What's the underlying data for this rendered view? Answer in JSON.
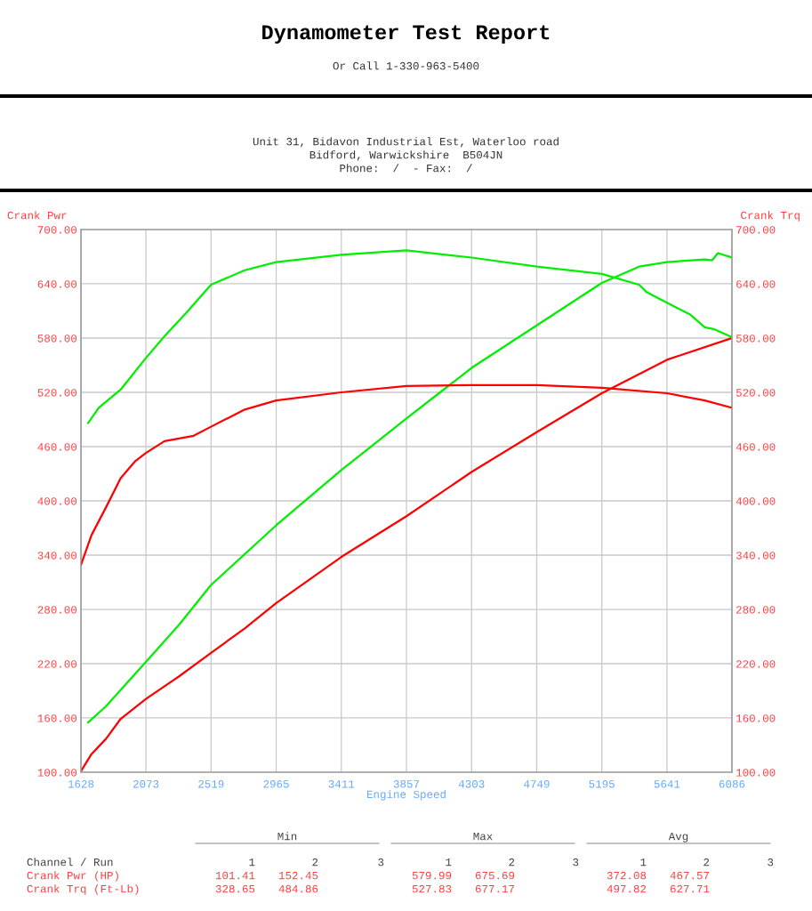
{
  "chart_data": {
    "type": "line",
    "title": "Dynamometer Test Report",
    "subtitle": "Or Call 1-330-963-5400",
    "xlabel": "Engine Speed",
    "ylabel": "Crank Pwr",
    "y2label": "Crank Trq",
    "xlim": [
      1628,
      6086
    ],
    "xticks": [
      1628,
      2073,
      2519,
      2965,
      3411,
      3857,
      4303,
      4749,
      5195,
      5641,
      6086
    ],
    "ylim": [
      100,
      700
    ],
    "yticks": [
      {
        "value": 100,
        "label": "100.00"
      },
      {
        "value": 160,
        "label": "160.00"
      },
      {
        "value": 220,
        "label": "220.00"
      },
      {
        "value": 280,
        "label": "280.00"
      },
      {
        "value": 340,
        "label": "340.00"
      },
      {
        "value": 400,
        "label": "400.00"
      },
      {
        "value": 460,
        "label": "460.00"
      },
      {
        "value": 520,
        "label": "520.00"
      },
      {
        "value": 580,
        "label": "580.00"
      },
      {
        "value": 640,
        "label": "640.00"
      },
      {
        "value": 700,
        "label": "700.00"
      }
    ],
    "y2lim": [
      100,
      700
    ],
    "y2ticks": [
      {
        "value": 100,
        "label": "100.00"
      },
      {
        "value": 160,
        "label": "160.00"
      },
      {
        "value": 220,
        "label": "220.00"
      },
      {
        "value": 280,
        "label": "280.00"
      },
      {
        "value": 340,
        "label": "340.00"
      },
      {
        "value": 400,
        "label": "400.00"
      },
      {
        "value": 460,
        "label": "460.00"
      },
      {
        "value": 520,
        "label": "520.00"
      },
      {
        "value": 580,
        "label": "580.00"
      },
      {
        "value": 640,
        "label": "640.00"
      },
      {
        "value": 700,
        "label": "700.00"
      }
    ],
    "grid": true,
    "marker": "none",
    "line_style": "solid",
    "series": [
      {
        "color": "#ff0000",
        "x": [
          1628,
          1700,
          1800,
          1900,
          2073,
          2300,
          2519,
          2750,
          2965,
          3411,
          3857,
          4303,
          4749,
          5195,
          5641,
          6086
        ],
        "values": [
          101,
          120,
          137,
          159,
          181,
          206,
          232,
          259,
          287,
          338,
          383,
          432,
          476,
          519,
          556,
          580
        ]
      },
      {
        "color": "#ff0000",
        "axis": "y2",
        "x": [
          1628,
          1700,
          1800,
          1900,
          2000,
          2073,
          2200,
          2400,
          2519,
          2750,
          2965,
          3411,
          3857,
          4303,
          4749,
          5195,
          5641,
          5900,
          6086
        ],
        "values": [
          329,
          362,
          393,
          425,
          444,
          453,
          466,
          472,
          482,
          501,
          511,
          520,
          527,
          528,
          528,
          525,
          519,
          511,
          503
        ]
      },
      {
        "color": "#00ee00",
        "x": [
          1677,
          1800,
          2073,
          2300,
          2519,
          2965,
          3411,
          3857,
          4303,
          4749,
          5195,
          5450,
          5641,
          5900,
          5950,
          5990,
          6086
        ],
        "values": [
          155,
          173,
          222,
          263,
          307,
          373,
          434,
          491,
          547,
          594,
          641,
          659,
          664,
          667,
          666,
          674,
          669
        ]
      },
      {
        "color": "#00ee00",
        "axis": "y2",
        "x": [
          1677,
          1750,
          1900,
          2073,
          2200,
          2350,
          2519,
          2750,
          2965,
          3411,
          3857,
          4303,
          4749,
          5195,
          5450,
          5500,
          5641,
          5800,
          5900,
          5960,
          6086
        ],
        "values": [
          486,
          503,
          523,
          558,
          582,
          608,
          639,
          655,
          664,
          672,
          677,
          669,
          659,
          651,
          639,
          631,
          619,
          606,
          592,
          590,
          581
        ]
      }
    ],
    "annotations": [
      "Unit 31, Bidavon Industrial Est, Waterloo road",
      "Bidford, Warwickshire  B504JN",
      "Phone:  /  - Fax:  /",
      "Min",
      "Max",
      "Avg",
      "Channel / Run",
      "1",
      "2",
      "3",
      "1",
      "2",
      "3",
      "1",
      "2",
      "3",
      "Crank Pwr (HP)",
      "101.41",
      "152.45",
      "579.99",
      "675.69",
      "372.08",
      "467.57",
      "Crank Trq (Ft-Lb)",
      "328.65",
      "484.86",
      "527.83",
      "677.17",
      "497.82",
      "627.71"
    ]
  }
}
